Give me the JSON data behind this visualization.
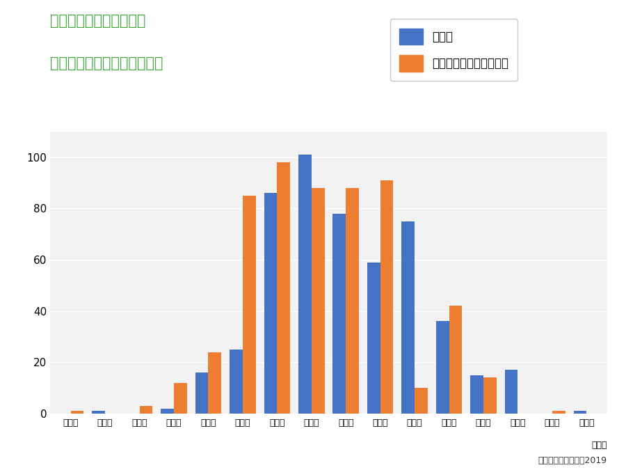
{
  "title_line1": "保育士の給料の度数分布",
  "title_line2": "４大卒と短大・専門卒の比較",
  "title_color": "#3aaa35",
  "categories": [
    "１３万",
    "１４万",
    "１５万",
    "１６万",
    "１７万",
    "１８万",
    "１９万",
    "２０万",
    "２１万",
    "２２万",
    "２３万",
    "２４万",
    "２５万",
    "２６万",
    "２７万",
    "２８万"
  ],
  "university": [
    0,
    1,
    0,
    2,
    16,
    25,
    86,
    101,
    78,
    59,
    75,
    36,
    15,
    17,
    0,
    1
  ],
  "vocational": [
    1,
    0,
    3,
    12,
    24,
    85,
    98,
    88,
    88,
    91,
    10,
    42,
    14,
    0,
    1,
    0
  ],
  "university_color": "#4472c4",
  "vocational_color": "#ed7d31",
  "legend_university": "４大卒",
  "legend_vocational": "短大・専門卒（２年制）",
  "xlabel": "（円）",
  "ylim": [
    0,
    110
  ],
  "yticks": [
    0,
    20,
    40,
    60,
    80,
    100
  ],
  "credit": "（ｃ）進学羅針盤　2019",
  "background_color": "#ffffff",
  "plot_bg_color": "#f2f2f2"
}
